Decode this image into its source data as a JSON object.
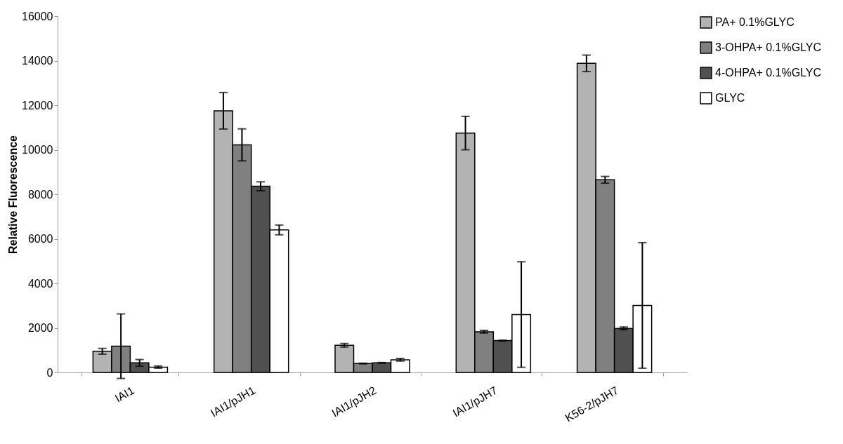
{
  "chart_data": {
    "type": "bar",
    "ylabel": "Relative Fluorescence",
    "categories": [
      "IAI1",
      "IAI1/pJH1",
      "IAI1/pJH2",
      "IAI1/pJH7",
      "K56-2/pJH7"
    ],
    "series": [
      {
        "name": "PA+ 0.1%GLYC",
        "color": "#b3b3b3",
        "values": [
          950,
          11750,
          1220,
          10750,
          13880
        ],
        "errors": [
          130,
          820,
          80,
          750,
          370
        ]
      },
      {
        "name": "3-OHPA+ 0.1%GLYC",
        "color": "#808080",
        "values": [
          1180,
          10220,
          400,
          1830,
          8650
        ],
        "errors": [
          1450,
          720,
          15,
          60,
          150
        ]
      },
      {
        "name": "4-OHPA+ 0.1%GLYC",
        "color": "#505050",
        "values": [
          430,
          8360,
          430,
          1430,
          1980
        ],
        "errors": [
          150,
          200,
          15,
          20,
          60
        ]
      },
      {
        "name": "GLYC",
        "color": "#ffffff",
        "values": [
          240,
          6400,
          570,
          2600,
          3010
        ],
        "errors": [
          50,
          220,
          60,
          2370,
          2820
        ]
      }
    ],
    "ylim": [
      0,
      16000
    ],
    "yticks": [
      0,
      2000,
      4000,
      6000,
      8000,
      10000,
      12000,
      14000,
      16000
    ],
    "grid": false,
    "legend": "top right"
  }
}
